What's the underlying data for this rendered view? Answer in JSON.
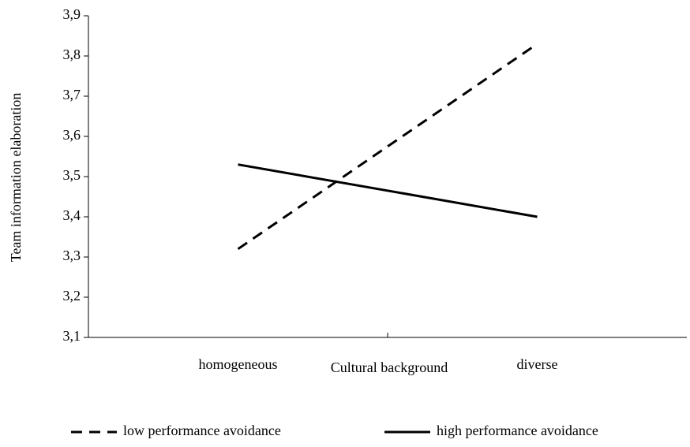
{
  "chart_data": {
    "type": "line",
    "x_label": "Cultural background",
    "y_label": "Team information elaboration",
    "categories": [
      "homogeneous",
      "diverse"
    ],
    "series": [
      {
        "name": "low performance avoidance",
        "color": "#000000",
        "style": "dashed",
        "values": [
          3.32,
          3.83
        ]
      },
      {
        "name": "high performance avoidance",
        "color": "#000000",
        "style": "solid",
        "values": [
          3.53,
          3.4
        ]
      }
    ],
    "ylim": [
      3.1,
      3.9
    ],
    "yticks": [
      {
        "value": 3.1,
        "label": "3,1"
      },
      {
        "value": 3.2,
        "label": "3,2"
      },
      {
        "value": 3.3,
        "label": "3,3"
      },
      {
        "value": 3.4,
        "label": "3,4"
      },
      {
        "value": 3.5,
        "label": "3,5"
      },
      {
        "value": 3.6,
        "label": "3,6"
      },
      {
        "value": 3.7,
        "label": "3,7"
      },
      {
        "value": 3.8,
        "label": "3,8"
      },
      {
        "value": 3.9,
        "label": "3,9"
      }
    ],
    "legend": "bottom"
  }
}
